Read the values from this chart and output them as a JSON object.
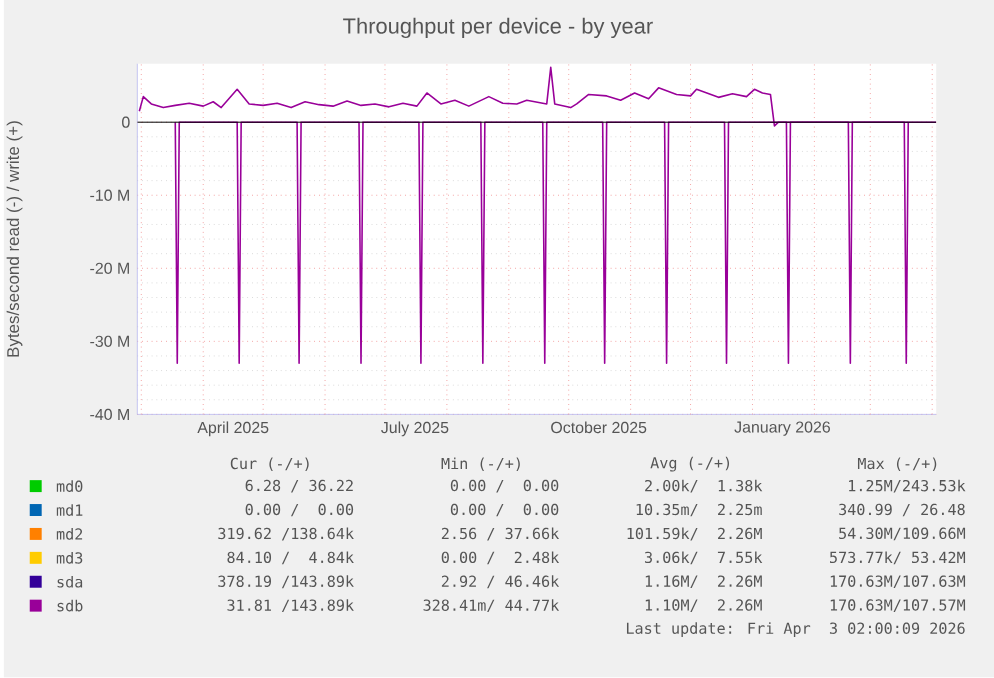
{
  "chart_data": {
    "type": "line",
    "title": "Throughput per device - by year",
    "ylabel": "Bytes/second read (-) / write (+)",
    "xlim": [
      "2025-02-27",
      "2026-04-03"
    ],
    "xticks": [
      {
        "value": "2025-03-01",
        "label": null
      },
      {
        "value": "2025-04-01",
        "label": null
      },
      {
        "value": "2025-04-16",
        "label": "April 2025"
      },
      {
        "value": "2025-05-01",
        "label": null
      },
      {
        "value": "2025-06-01",
        "label": null
      },
      {
        "value": "2025-07-01",
        "label": null
      },
      {
        "value": "2025-07-16",
        "label": "July 2025"
      },
      {
        "value": "2025-08-01",
        "label": null
      },
      {
        "value": "2025-09-01",
        "label": null
      },
      {
        "value": "2025-10-01",
        "label": null
      },
      {
        "value": "2025-10-16",
        "label": "October 2025"
      },
      {
        "value": "2025-11-01",
        "label": null
      },
      {
        "value": "2025-12-01",
        "label": null
      },
      {
        "value": "2026-01-01",
        "label": null
      },
      {
        "value": "2026-01-16",
        "label": "January 2026"
      },
      {
        "value": "2026-02-01",
        "label": null
      },
      {
        "value": "2026-03-01",
        "label": null
      },
      {
        "value": "2026-04-01",
        "label": null
      }
    ],
    "ylim": [
      -40,
      8
    ],
    "yticks": [
      {
        "value": -40,
        "label": "-40 M"
      },
      {
        "value": -30,
        "label": "-30 M"
      },
      {
        "value": -20,
        "label": "-20 M"
      },
      {
        "value": -10,
        "label": "-10 M"
      },
      0
    ],
    "grid": true,
    "legend": "bottom",
    "series": [
      {
        "name": "md0",
        "color": "#00cc00"
      },
      {
        "name": "md1",
        "color": "#0066b3"
      },
      {
        "name": "md2",
        "color": "#ff8000"
      },
      {
        "name": "md3",
        "color": "#ffcc00"
      },
      {
        "name": "sda",
        "color": "#330099"
      },
      {
        "name": "sdb",
        "color": "#990099",
        "x": [
          "2025-02-28",
          "2025-03-02",
          "2025-03-06",
          "2025-03-12",
          "2025-03-18",
          "2025-03-25",
          "2025-04-01",
          "2025-04-06",
          "2025-04-10",
          "2025-04-18",
          "2025-04-24",
          "2025-05-01",
          "2025-05-08",
          "2025-05-15",
          "2025-05-22",
          "2025-05-29",
          "2025-06-05",
          "2025-06-12",
          "2025-06-19",
          "2025-06-26",
          "2025-07-03",
          "2025-07-10",
          "2025-07-17",
          "2025-07-22",
          "2025-07-29",
          "2025-08-05",
          "2025-08-12",
          "2025-08-22",
          "2025-08-29",
          "2025-09-05",
          "2025-09-10",
          "2025-09-20",
          "2025-09-22",
          "2025-09-24",
          "2025-10-02",
          "2025-10-05",
          "2025-10-11",
          "2025-10-20",
          "2025-10-27",
          "2025-11-03",
          "2025-11-10",
          "2025-11-15",
          "2025-11-24",
          "2025-12-01",
          "2025-12-04",
          "2025-12-15",
          "2025-12-22",
          "2025-12-29",
          "2026-01-02",
          "2026-01-06",
          "2026-01-10",
          "2026-01-12",
          "2026-01-14",
          "2026-02-15",
          "2026-03-15",
          "2026-04-03"
        ],
        "values": [
          1.5,
          3.5,
          2.5,
          2.0,
          2.3,
          2.6,
          2.2,
          2.8,
          2.0,
          4.5,
          2.5,
          2.3,
          2.6,
          2.0,
          2.8,
          2.4,
          2.2,
          2.9,
          2.3,
          2.5,
          2.1,
          2.6,
          2.2,
          4.0,
          2.5,
          3.0,
          2.2,
          3.5,
          2.6,
          2.5,
          3.0,
          2.5,
          7.5,
          2.5,
          2.0,
          2.5,
          3.8,
          3.6,
          3.0,
          4.0,
          3.2,
          4.7,
          3.8,
          3.6,
          4.5,
          3.4,
          3.9,
          3.5,
          4.5,
          4.0,
          3.8,
          -0.5,
          0,
          0,
          0,
          0
        ]
      },
      {
        "color": "#990099",
        "x": [
          "2025-03-18",
          "2025-03-19",
          "2025-03-20",
          "2025-04-18",
          "2025-04-19",
          "2025-04-20",
          "2025-05-18",
          "2025-05-19",
          "2025-05-20",
          "2025-06-18",
          "2025-06-19",
          "2025-06-20",
          "2025-07-18",
          "2025-07-19",
          "2025-07-20",
          "2025-08-18",
          "2025-08-19",
          "2025-08-20",
          "2025-09-18",
          "2025-09-19",
          "2025-09-20",
          "2025-10-18",
          "2025-10-19",
          "2025-10-20",
          "2025-11-18",
          "2025-11-19",
          "2025-11-20",
          "2025-12-18",
          "2025-12-19",
          "2025-12-20",
          "2026-01-18",
          "2026-01-19",
          "2026-01-20",
          "2026-02-18",
          "2026-02-19",
          "2026-02-20",
          "2026-03-18",
          "2026-03-19",
          "2026-03-20"
        ],
        "values": [
          0,
          -33,
          0,
          0,
          -33,
          0,
          0,
          -33,
          0,
          0,
          -33,
          0,
          0,
          -33,
          0,
          0,
          -33,
          0,
          0,
          -33,
          0,
          0,
          -33,
          0,
          0,
          -33,
          0,
          0,
          -33,
          0,
          0,
          -33,
          0,
          0,
          -33,
          0,
          0,
          -33,
          0
        ]
      }
    ],
    "annotations": [
      "Cur (-/+)",
      "Min (-/+)",
      "Avg (-/+)",
      "Max (-/+)",
      "6.28 / 36.22",
      "0.00 /  0.00",
      "2.00k/  1.38k",
      "1.25M/243.53k",
      "0.00 /  0.00",
      "0.00 /  0.00",
      "10.35m/  2.25m",
      "340.99 / 26.48",
      "319.62 /138.64k",
      "2.56 / 37.66k",
      "101.59k/  2.26M",
      "54.30M/109.66M",
      "84.10 /  4.84k",
      "0.00 /  2.48k",
      "3.06k/  7.55k",
      "573.77k/ 53.42M",
      "378.19 /143.89k",
      "2.92 / 46.46k",
      "1.16M/  2.26M",
      "170.63M/107.63M",
      "31.81 /143.89k",
      "328.41m/ 44.77k",
      "1.10M/  2.26M",
      "170.63M/107.57M",
      "Last update: Fri Apr  3 02:00:09 2026"
    ]
  }
}
